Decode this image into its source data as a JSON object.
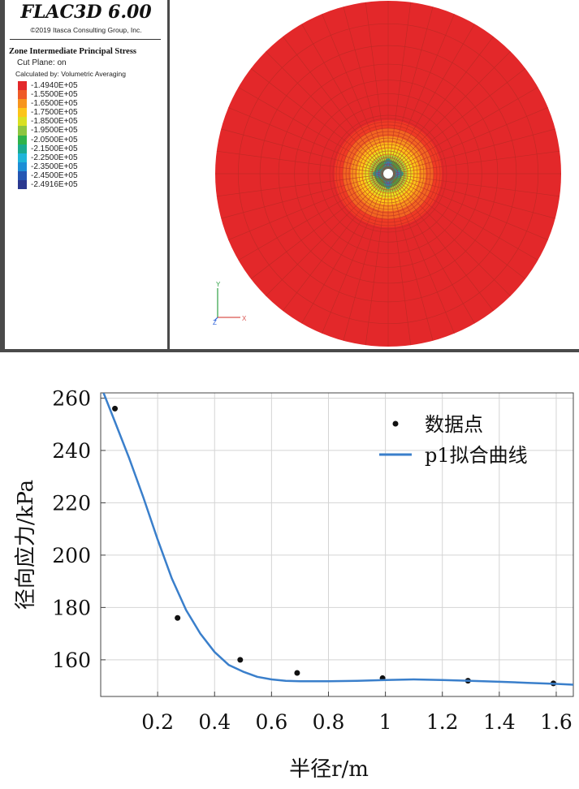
{
  "flac": {
    "title": "FLAC3D 6.00",
    "copyright": "©2019 Itasca Consulting Group, Inc.",
    "legend_heading": "Zone Intermediate Principal Stress",
    "cut_plane": "Cut Plane: on",
    "calculated_by": "Calculated by: Volumetric Averaging",
    "legend": [
      {
        "label": "-1.4940E+05",
        "color": "#e3282a"
      },
      {
        "label": "-1.5500E+05",
        "color": "#ef5a27"
      },
      {
        "label": "-1.6500E+05",
        "color": "#f7941d"
      },
      {
        "label": "-1.7500E+05",
        "color": "#fcc418"
      },
      {
        "label": "-1.8500E+05",
        "color": "#d9e021"
      },
      {
        "label": "-1.9500E+05",
        "color": "#8dc63f"
      },
      {
        "label": "-2.0500E+05",
        "color": "#2fb34a"
      },
      {
        "label": "-2.1500E+05",
        "color": "#1aab8f"
      },
      {
        "label": "-2.2500E+05",
        "color": "#1fb5d9"
      },
      {
        "label": "-2.3500E+05",
        "color": "#1c8ed6"
      },
      {
        "label": "-2.4500E+05",
        "color": "#2456b3"
      },
      {
        "label": "-2.4916E+05",
        "color": "#2b3990"
      }
    ],
    "axes": {
      "y": "Y",
      "z": "Z",
      "x": "X"
    },
    "colors": {
      "outer": "#e3282a",
      "mesh_line": "#b52a24",
      "center_hole": "#ffffff"
    }
  },
  "chart_data": {
    "type": "scatter",
    "xlabel": "半径r/m",
    "ylabel": "径向应力/kPa",
    "xlim": [
      0,
      1.66
    ],
    "ylim": [
      146,
      262
    ],
    "x_ticks": [
      0.2,
      0.4,
      0.6,
      0.8,
      1,
      1.2,
      1.4,
      1.6
    ],
    "x_tick_labels": [
      "0.2",
      "0.4",
      "0.6",
      "0.8",
      "1",
      "1.2",
      "1.4",
      "1.6"
    ],
    "y_ticks": [
      160,
      180,
      200,
      220,
      240,
      260
    ],
    "y_tick_labels": [
      "160",
      "180",
      "200",
      "220",
      "240",
      "260"
    ],
    "grid": true,
    "legend_position": "top-right",
    "series": [
      {
        "name": "数据点",
        "kind": "points",
        "color": "#111111",
        "x": [
          0.05,
          0.27,
          0.49,
          0.69,
          0.99,
          1.29,
          1.59
        ],
        "y": [
          256,
          176,
          160,
          155,
          153,
          152,
          151
        ]
      },
      {
        "name": "p1拟合曲线",
        "kind": "line",
        "color": "#3a7fcb",
        "x": [
          0.01,
          0.05,
          0.1,
          0.15,
          0.2,
          0.25,
          0.3,
          0.35,
          0.4,
          0.45,
          0.5,
          0.55,
          0.6,
          0.65,
          0.7,
          0.75,
          0.8,
          0.9,
          1.0,
          1.1,
          1.2,
          1.3,
          1.4,
          1.5,
          1.6,
          1.66
        ],
        "y": [
          262,
          251,
          237,
          222,
          206,
          191,
          179,
          170,
          163,
          158,
          155.5,
          153.5,
          152.5,
          152,
          151.8,
          151.8,
          151.8,
          152,
          152.3,
          152.5,
          152.3,
          152,
          151.6,
          151.2,
          150.8,
          150.5
        ]
      }
    ]
  }
}
